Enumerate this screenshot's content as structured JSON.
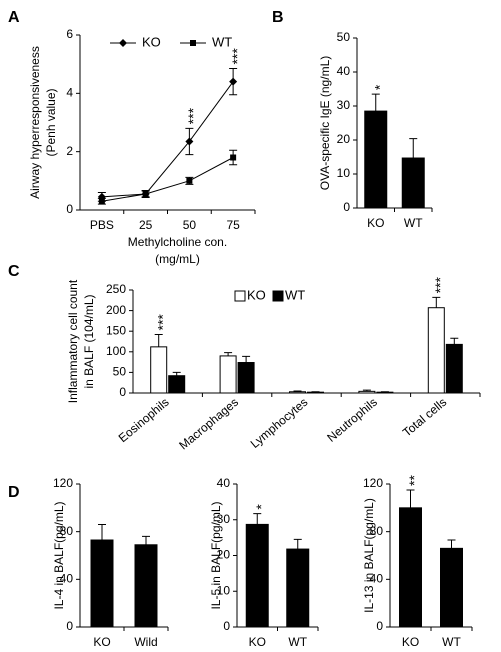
{
  "chart_data": [
    {
      "type": "line",
      "panel": "A",
      "categories": [
        "PBS",
        "25",
        "50",
        "75"
      ],
      "series": [
        {
          "name": "KO",
          "color": "#000000",
          "marker": "diamond",
          "values": [
            0.45,
            0.55,
            2.35,
            4.4
          ],
          "errors": [
            0.15,
            0.12,
            0.45,
            0.45
          ],
          "sig": [
            null,
            null,
            "***",
            "***"
          ]
        },
        {
          "name": "WT",
          "color": "#000000",
          "marker": "square",
          "values": [
            0.3,
            0.55,
            1.0,
            1.8
          ],
          "errors": [
            0.1,
            0.1,
            0.12,
            0.25
          ],
          "sig": [
            null,
            null,
            null,
            null
          ]
        }
      ],
      "ylabel": [
        "Airway hyperresponsiveness",
        "(Penh value)"
      ],
      "xlabel": [
        "Methylcholine con.",
        "(mg/mL)"
      ],
      "ylim": [
        0,
        6
      ],
      "yticks": [
        0,
        2,
        4,
        6
      ]
    },
    {
      "type": "bar",
      "panel": "B",
      "categories": [
        "KO",
        "WT"
      ],
      "values": [
        28.5,
        14.7
      ],
      "errors": [
        5,
        5.7
      ],
      "sig": [
        "*",
        null
      ],
      "color": "#000000",
      "ylabel": [
        "OVA-specific IgE (ng/mL)"
      ],
      "ylim": [
        0,
        50
      ],
      "yticks": [
        0,
        10,
        20,
        30,
        40,
        50
      ]
    },
    {
      "type": "bar",
      "panel": "C",
      "categories": [
        "Eosinophils",
        "Macrophages",
        "Lymphocytes",
        "Neutrophils",
        "Total cells"
      ],
      "series": [
        {
          "name": "KO",
          "color": "#ffffff",
          "values": [
            112,
            90,
            3,
            4,
            207
          ],
          "errors": [
            30,
            8,
            2,
            3,
            25
          ],
          "sig": [
            "***",
            null,
            null,
            null,
            "***"
          ]
        },
        {
          "name": "WT",
          "color": "#000000",
          "values": [
            42,
            74,
            2,
            2,
            118
          ],
          "errors": [
            8,
            15,
            1,
            1,
            15
          ],
          "sig": [
            null,
            null,
            null,
            null,
            null
          ]
        }
      ],
      "ylabel": [
        "Inflammatory cell count",
        "in BALF (104/mL)"
      ],
      "ylim": [
        0,
        250
      ],
      "yticks": [
        0,
        50,
        100,
        150,
        200,
        250
      ]
    },
    {
      "type": "bar",
      "panel": "D",
      "categories": [
        "KO",
        "Wild"
      ],
      "values": [
        73,
        69
      ],
      "errors": [
        13,
        7
      ],
      "sig": [
        null,
        null
      ],
      "color": "#000000",
      "ylabel": [
        "IL-4 in BALF(pg/mL)"
      ],
      "ylim": [
        0,
        120
      ],
      "yticks": [
        0,
        40,
        80,
        120
      ]
    },
    {
      "type": "bar",
      "categories": [
        "KO",
        "WT"
      ],
      "values": [
        28.7,
        21.8
      ],
      "errors": [
        3,
        2.7
      ],
      "sig": [
        "*",
        null
      ],
      "color": "#000000",
      "ylabel": [
        "IL-5 in BALF(pg/mL)"
      ],
      "ylim": [
        0,
        40
      ],
      "yticks": [
        0,
        10,
        20,
        30,
        40
      ]
    },
    {
      "type": "bar",
      "categories": [
        "KO",
        "WT"
      ],
      "values": [
        100,
        66
      ],
      "errors": [
        15,
        7
      ],
      "sig": [
        "**",
        null
      ],
      "color": "#000000",
      "ylabel": [
        "IL-13 in BALF(pg/mL)"
      ],
      "ylim": [
        0,
        120
      ],
      "yticks": [
        0,
        40,
        80,
        120
      ]
    }
  ]
}
